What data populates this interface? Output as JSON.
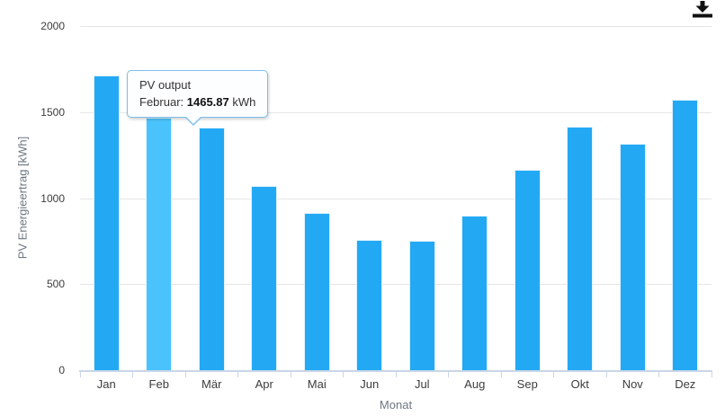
{
  "chart_data": {
    "type": "bar",
    "title": "",
    "categories": [
      "Jan",
      "Feb",
      "Mär",
      "Apr",
      "Mai",
      "Jun",
      "Jul",
      "Aug",
      "Sep",
      "Okt",
      "Nov",
      "Dez"
    ],
    "series": [
      {
        "name": "PV output",
        "values": [
          1713,
          1465.87,
          1412,
          1070,
          913,
          755,
          750,
          900,
          1162,
          1416,
          1317,
          1571
        ]
      }
    ],
    "xlabel": "Monat",
    "ylabel": "PV Energieertrag [kWh]",
    "ylim": [
      0,
      2000
    ],
    "yticks": [
      0,
      500,
      1000,
      1500,
      2000
    ],
    "grid": true,
    "legend": "none",
    "highlight_index": 1,
    "bar_color": "#23a9f4",
    "bar_hover_color": "#4ac3fc",
    "grid_color": "#e6e6e6",
    "axis_line_color": "#c9d6e8"
  },
  "tooltip": {
    "title": "PV output",
    "label": "Februar:",
    "value": "1465.87",
    "unit": "kWh",
    "border_color": "#7cbfec"
  },
  "toolbar": {
    "download_icon": "download"
  }
}
